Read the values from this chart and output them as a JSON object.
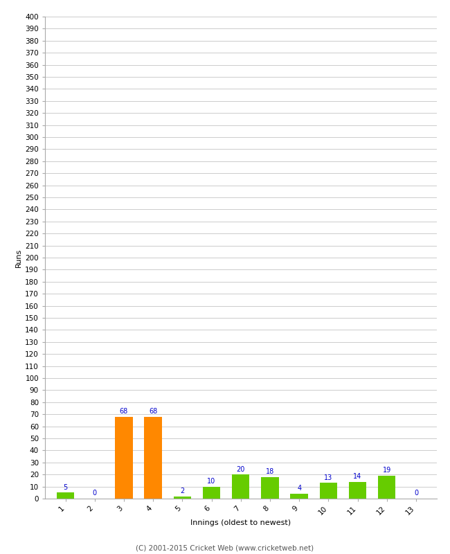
{
  "xlabel": "Innings (oldest to newest)",
  "ylabel": "Runs",
  "categories": [
    1,
    2,
    3,
    4,
    5,
    6,
    7,
    8,
    9,
    10,
    11,
    12,
    13
  ],
  "values": [
    5,
    0,
    68,
    68,
    2,
    10,
    20,
    18,
    4,
    13,
    14,
    19,
    0
  ],
  "bar_colors": [
    "#66cc00",
    "#66cc00",
    "#ff8800",
    "#ff8800",
    "#66cc00",
    "#66cc00",
    "#66cc00",
    "#66cc00",
    "#66cc00",
    "#66cc00",
    "#66cc00",
    "#66cc00",
    "#66cc00"
  ],
  "label_color": "#0000cc",
  "label_fontsize": 7,
  "background_color": "#ffffff",
  "grid_color": "#cccccc",
  "ylim": [
    0,
    400
  ],
  "yticks": [
    0,
    10,
    20,
    30,
    40,
    50,
    60,
    70,
    80,
    90,
    100,
    110,
    120,
    130,
    140,
    150,
    160,
    170,
    180,
    190,
    200,
    210,
    220,
    230,
    240,
    250,
    260,
    270,
    280,
    290,
    300,
    310,
    320,
    330,
    340,
    350,
    360,
    370,
    380,
    390,
    400
  ],
  "footer": "(C) 2001-2015 Cricket Web (www.cricketweb.net)",
  "footer_fontsize": 7.5,
  "bar_width": 0.6,
  "xlabel_fontsize": 8,
  "ylabel_fontsize": 8,
  "tick_fontsize": 7.5
}
